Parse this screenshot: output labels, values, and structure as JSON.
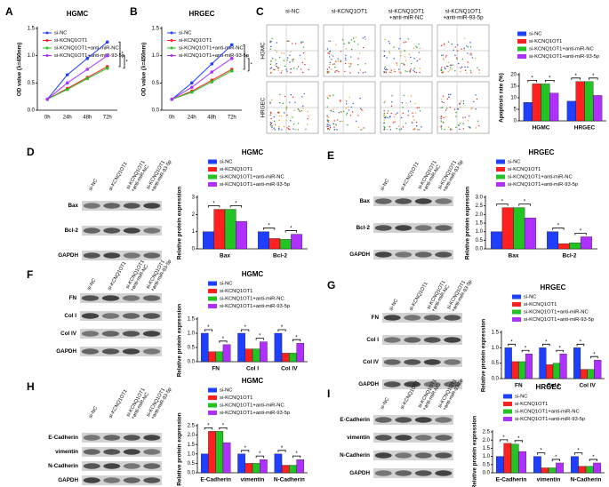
{
  "panel_labels": [
    "A",
    "B",
    "C",
    "D",
    "E",
    "F",
    "G",
    "H",
    "I"
  ],
  "flow_cytometry": {
    "columns": [
      [
        "si-NC"
      ],
      [
        "si-KCNQ1OT1"
      ],
      [
        "si-KCNQ1OT1",
        "+anti-miR-NC"
      ],
      [
        "si-KCNQ1OT1",
        "+anti-miR-93-5p"
      ]
    ],
    "rows": [
      "HGMC",
      "HRGEC"
    ]
  },
  "blots": [
    {
      "lanes": [
        [
          "si-NC"
        ],
        [
          "si-KCNQ1OT1"
        ],
        [
          "si-KCNQ1OT1",
          "+anti-miR-NC"
        ],
        [
          "si-KCNQ1OT1",
          "+anti-miR-93-5p"
        ]
      ],
      "bands": [
        "Bax",
        "Bcl-2",
        "GAPDH"
      ]
    },
    {
      "lanes": [
        [
          "si-NC"
        ],
        [
          "si-KCNQ1OT1"
        ],
        [
          "si-KCNQ1OT1",
          "+anti-miR-NC"
        ],
        [
          "si-KCNQ1OT1",
          "+anti-miR-93-5p"
        ]
      ],
      "bands": [
        "Bax",
        "Bcl-2",
        "GAPDH"
      ]
    },
    {
      "lanes": [
        [
          "si-NC"
        ],
        [
          "si-KCNQ1OT1"
        ],
        [
          "si-KCNQ1OT1",
          "+anti-miR-NC"
        ],
        [
          "si-KCNQ1OT1",
          "+anti-miR-93-5p"
        ]
      ],
      "bands": [
        "FN",
        "Col I",
        "Col IV",
        "GAPDH"
      ]
    },
    {
      "lanes": [
        [
          "si-NC"
        ],
        [
          "si-KCNQ1OT1"
        ],
        [
          "si-KCNQ1OT1",
          "+anti-miR-NC"
        ],
        [
          "si-KCNQ1OT1",
          "+anti-miR-93-5p"
        ]
      ],
      "bands": [
        "FN",
        "Col I",
        "Col IV",
        "GAPDH"
      ]
    },
    {
      "lanes": [
        [
          "si-NC"
        ],
        [
          "si-KCNQ1OT1"
        ],
        [
          "si-KCNQ1OT1",
          "+anti-miR-NC"
        ],
        [
          "si-KCNQ1OT1",
          "+anti-miR-93-5p"
        ]
      ],
      "bands": [
        "E-Cadherin",
        "vimentin",
        "N-Cadherin",
        "GAPDH"
      ]
    },
    {
      "lanes": [
        [
          "si-NC"
        ],
        [
          "si-KCNQ1OT1"
        ],
        [
          "si-KCNQ1OT1",
          "+anti-miR-NC"
        ],
        [
          "si-KCNQ1OT1",
          "+anti-miR-93-5p"
        ]
      ],
      "bands": [
        "E-Cadherin",
        "vimentin",
        "N-Cadherin",
        "GAPDH"
      ]
    }
  ],
  "chart_data": [
    {
      "type": "line",
      "title": "HGMC",
      "ylabel": "OD value (λ=450nm)",
      "categories": [
        "0h",
        "24h",
        "48h",
        "72h"
      ],
      "ylim": [
        0,
        1.5
      ],
      "yticks": [
        {
          "value": 0,
          "label": "0.0"
        },
        0.5,
        {
          "value": 1,
          "label": "1.0"
        },
        1.5
      ],
      "significance_label": "*",
      "series": [
        {
          "name": "si-NC",
          "color": "#1f3fff",
          "values": [
            0.2,
            0.65,
            0.95,
            1.25
          ]
        },
        {
          "name": "si-KCNQ1OT1",
          "color": "#ff2020",
          "values": [
            0.2,
            0.4,
            0.6,
            0.8
          ]
        },
        {
          "name": "si-KCNQ1OT1+anti-miR-NC",
          "color": "#22c322",
          "values": [
            0.2,
            0.38,
            0.58,
            0.77
          ]
        },
        {
          "name": "si-KCNQ1OT1+anti-miR-93-5p",
          "color": "#b030ff",
          "values": [
            0.2,
            0.5,
            0.75,
            1.0
          ]
        }
      ]
    },
    {
      "type": "line",
      "title": "HRGEC",
      "ylabel": "OD value (λ=450nm)",
      "categories": [
        "0h",
        "24h",
        "48h",
        "72h"
      ],
      "ylim": [
        0,
        1.5
      ],
      "yticks": [
        {
          "value": 0,
          "label": "0.0"
        },
        0.5,
        {
          "value": 1,
          "label": "1.0"
        },
        1.5
      ],
      "significance_label": "*",
      "series": [
        {
          "name": "si-NC",
          "color": "#1f3fff",
          "values": [
            0.2,
            0.5,
            0.85,
            1.2
          ]
        },
        {
          "name": "si-KCNQ1OT1",
          "color": "#ff2020",
          "values": [
            0.2,
            0.35,
            0.55,
            0.75
          ]
        },
        {
          "name": "si-KCNQ1OT1+anti-miR-NC",
          "color": "#22c322",
          "values": [
            0.2,
            0.33,
            0.52,
            0.72
          ]
        },
        {
          "name": "si-KCNQ1OT1+anti-miR-93-5p",
          "color": "#b030ff",
          "values": [
            0.2,
            0.42,
            0.7,
            0.95
          ]
        }
      ]
    },
    {
      "type": "bar",
      "ylabel": "Apoptosis rate (%)",
      "categories": [
        "HGMC",
        "HRGEC"
      ],
      "ylim": [
        0,
        20
      ],
      "yticks": [
        0,
        5,
        10,
        15,
        20
      ],
      "significance_label": "*",
      "series": [
        {
          "name": "si-NC",
          "color": "#1f3fff",
          "values": [
            8,
            8.5
          ]
        },
        {
          "name": "si-KCNQ1OT1",
          "color": "#ff2020",
          "values": [
            16,
            17
          ]
        },
        {
          "name": "si-KCNQ1OT1+anti-miR-NC",
          "color": "#22c322",
          "values": [
            16,
            17
          ]
        },
        {
          "name": "si-KCNQ1OT1+anti-miR-93-5p",
          "color": "#b030ff",
          "values": [
            12,
            11
          ]
        }
      ]
    },
    {
      "type": "bar",
      "title": "HGMC",
      "ylabel": "Relative protein expression",
      "categories": [
        "Bax",
        "Bcl-2"
      ],
      "ylim": [
        0,
        3
      ],
      "yticks": [
        0,
        1,
        2,
        3
      ],
      "significance_label": "*",
      "series": [
        {
          "name": "si-NC",
          "color": "#1f3fff",
          "values": [
            1,
            1
          ]
        },
        {
          "name": "si-KCNQ1OT1",
          "color": "#ff2020",
          "values": [
            2.3,
            0.6
          ]
        },
        {
          "name": "si-KCNQ1OT1+anti-miR-NC",
          "color": "#22c322",
          "values": [
            2.3,
            0.55
          ]
        },
        {
          "name": "si-KCNQ1OT1+anti-miR-93-5p",
          "color": "#b030ff",
          "values": [
            1.6,
            0.85
          ]
        }
      ]
    },
    {
      "type": "bar",
      "title": "HRGEC",
      "ylabel": "Relative protein expression",
      "categories": [
        "Bax",
        "Bcl-2"
      ],
      "ylim": [
        0,
        3
      ],
      "yticks": [
        {
          "value": 0,
          "label": "0.0"
        },
        0.5,
        {
          "value": 1,
          "label": "1.0"
        },
        1.5,
        {
          "value": 2,
          "label": "2.0"
        },
        2.5,
        {
          "value": 3,
          "label": "3.0"
        }
      ],
      "significance_label": "*",
      "series": [
        {
          "name": "si-NC",
          "color": "#1f3fff",
          "values": [
            1,
            1
          ]
        },
        {
          "name": "si-KCNQ1OT1",
          "color": "#ff2020",
          "values": [
            2.4,
            0.3
          ]
        },
        {
          "name": "si-KCNQ1OT1+anti-miR-NC",
          "color": "#22c322",
          "values": [
            2.4,
            0.35
          ]
        },
        {
          "name": "si-KCNQ1OT1+anti-miR-93-5p",
          "color": "#b030ff",
          "values": [
            1.8,
            0.7
          ]
        }
      ]
    },
    {
      "type": "bar",
      "title": "HGMC",
      "ylabel": "Relative protein expression",
      "categories": [
        "FN",
        "Col I",
        "Col IV"
      ],
      "ylim": [
        0,
        1.5
      ],
      "yticks": [
        {
          "value": 0,
          "label": "0.0"
        },
        0.5,
        {
          "value": 1,
          "label": "1.0"
        },
        1.5
      ],
      "significance_label": "*",
      "series": [
        {
          "name": "si-NC",
          "color": "#1f3fff",
          "values": [
            1,
            1,
            1
          ]
        },
        {
          "name": "si-KCNQ1OT1",
          "color": "#ff2020",
          "values": [
            0.35,
            0.45,
            0.3
          ]
        },
        {
          "name": "si-KCNQ1OT1+anti-miR-NC",
          "color": "#22c322",
          "values": [
            0.35,
            0.45,
            0.3
          ]
        },
        {
          "name": "si-KCNQ1OT1+anti-miR-93-5p",
          "color": "#b030ff",
          "values": [
            0.6,
            0.7,
            0.65
          ]
        }
      ]
    },
    {
      "type": "bar",
      "title": "HRGEC",
      "ylabel": "Relative protein expression",
      "categories": [
        "FN",
        "Col I",
        "Col IV"
      ],
      "ylim": [
        0,
        1.5
      ],
      "yticks": [
        {
          "value": 0,
          "label": "0.0"
        },
        0.5,
        {
          "value": 1,
          "label": "1.0"
        },
        1.5
      ],
      "significance_label": "*",
      "series": [
        {
          "name": "si-NC",
          "color": "#1f3fff",
          "values": [
            1,
            1,
            1
          ]
        },
        {
          "name": "si-KCNQ1OT1",
          "color": "#ff2020",
          "values": [
            0.55,
            0.45,
            0.3
          ]
        },
        {
          "name": "si-KCNQ1OT1+anti-miR-NC",
          "color": "#22c322",
          "values": [
            0.55,
            0.5,
            0.3
          ]
        },
        {
          "name": "si-KCNQ1OT1+anti-miR-93-5p",
          "color": "#b030ff",
          "values": [
            0.8,
            0.8,
            0.6
          ]
        }
      ]
    },
    {
      "type": "bar",
      "title": "HGMC",
      "ylabel": "Relative protein expression",
      "categories": [
        "E-Cadherin",
        "vimentin",
        "N-Cadherin"
      ],
      "ylim": [
        0,
        2.5
      ],
      "yticks": [
        {
          "value": 0,
          "label": "0.0"
        },
        0.5,
        {
          "value": 1,
          "label": "1.0"
        },
        1.5,
        {
          "value": 2,
          "label": "2.0"
        },
        2.5
      ],
      "significance_label": "*",
      "series": [
        {
          "name": "si-NC",
          "color": "#1f3fff",
          "values": [
            1,
            1,
            1
          ]
        },
        {
          "name": "si-KCNQ1OT1",
          "color": "#ff2020",
          "values": [
            2.2,
            0.5,
            0.4
          ]
        },
        {
          "name": "si-KCNQ1OT1+anti-miR-NC",
          "color": "#22c322",
          "values": [
            2.2,
            0.5,
            0.4
          ]
        },
        {
          "name": "si-KCNQ1OT1+anti-miR-93-5p",
          "color": "#b030ff",
          "values": [
            1.6,
            0.7,
            0.7
          ]
        }
      ]
    },
    {
      "type": "bar",
      "title": "HRGEC",
      "ylabel": "Relative protein expression",
      "categories": [
        "E-Cadherin",
        "vimentin",
        "N-Cadherin"
      ],
      "ylim": [
        0,
        2.5
      ],
      "yticks": [
        {
          "value": 0,
          "label": "0.0"
        },
        0.5,
        {
          "value": 1,
          "label": "1.0"
        },
        1.5,
        {
          "value": 2,
          "label": "2.0"
        },
        2.5
      ],
      "significance_label": "*",
      "series": [
        {
          "name": "si-NC",
          "color": "#1f3fff",
          "values": [
            1,
            1,
            1
          ]
        },
        {
          "name": "si-KCNQ1OT1",
          "color": "#ff2020",
          "values": [
            1.8,
            0.3,
            0.4
          ]
        },
        {
          "name": "si-KCNQ1OT1+anti-miR-NC",
          "color": "#22c322",
          "values": [
            1.75,
            0.3,
            0.4
          ]
        },
        {
          "name": "si-KCNQ1OT1+anti-miR-93-5p",
          "color": "#b030ff",
          "values": [
            1.3,
            0.6,
            0.6
          ]
        }
      ]
    }
  ]
}
